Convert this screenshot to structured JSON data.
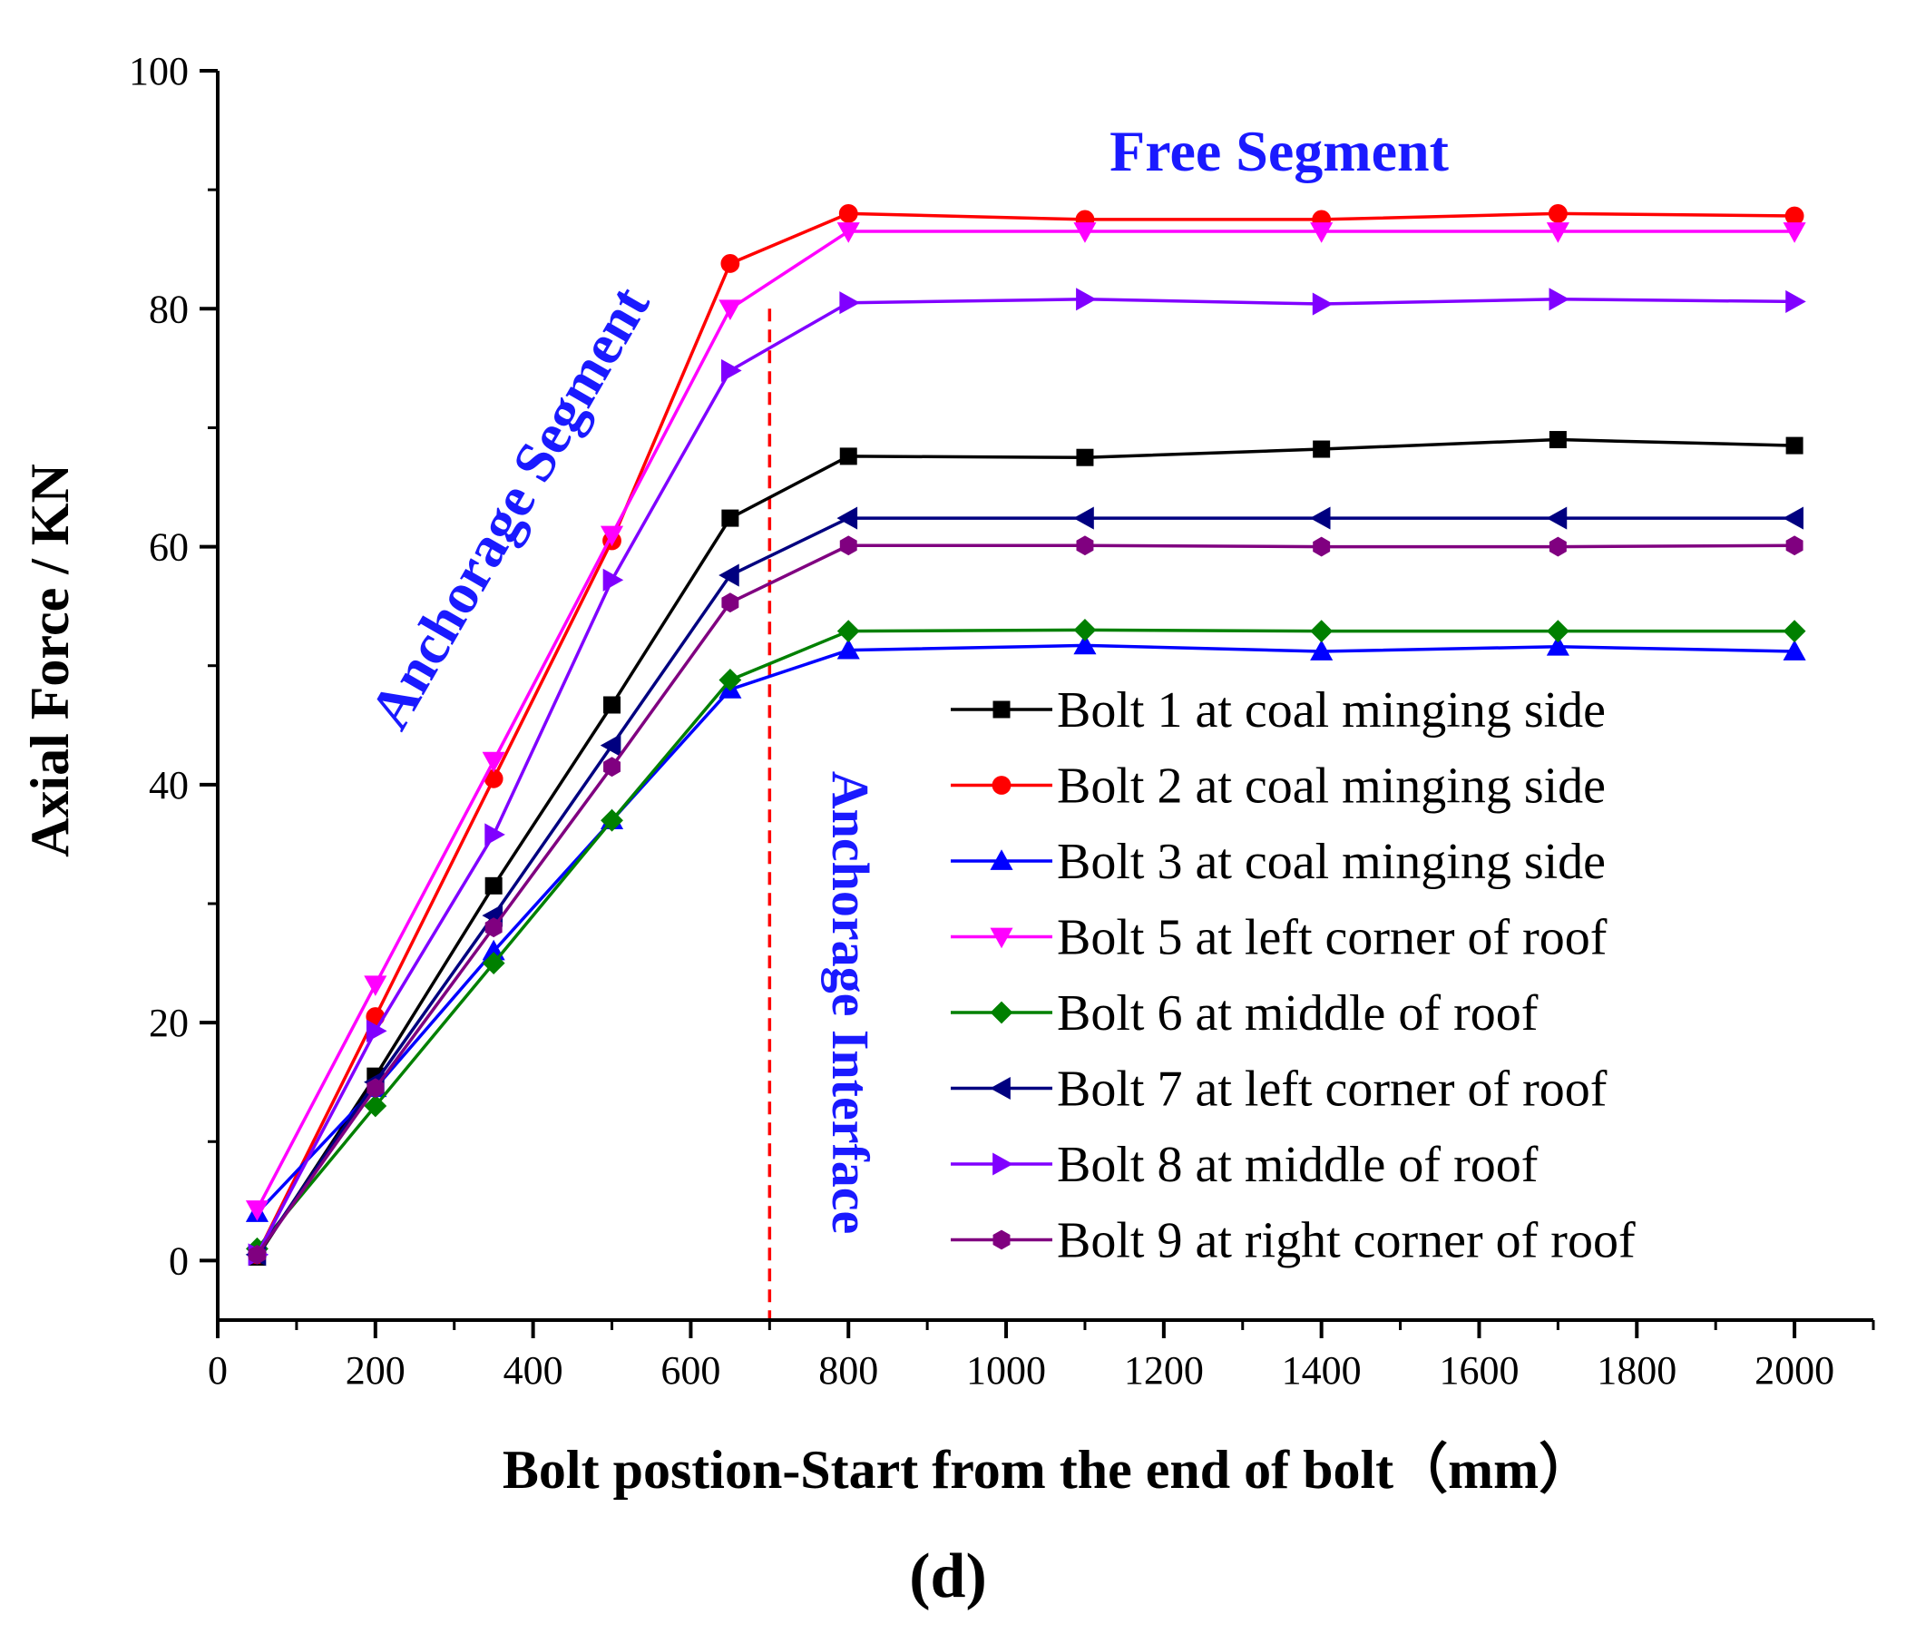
{
  "chart_data": {
    "type": "line",
    "xlabel": "Bolt postion-Start from the end of bolt（mm）",
    "ylabel": "Axial Force / KN",
    "caption": "(d)",
    "xlim": [
      0,
      2100
    ],
    "ylim": [
      -5,
      100
    ],
    "xticks": [
      0,
      200,
      400,
      600,
      800,
      1000,
      1200,
      1400,
      1600,
      1800,
      2000
    ],
    "yticks": [
      0,
      20,
      40,
      60,
      80,
      100
    ],
    "x": [
      50,
      200,
      350,
      500,
      650,
      800,
      1100,
      1400,
      1700,
      2000
    ],
    "series": [
      {
        "name": "Bolt 1 at coal minging side",
        "color": "#000000",
        "marker": "square",
        "values": [
          0.3,
          15.5,
          31.5,
          46.7,
          62.4,
          67.6,
          67.5,
          68.2,
          69.0,
          68.5
        ]
      },
      {
        "name": "Bolt 2 at coal minging side",
        "color": "#ff0000",
        "marker": "circle",
        "values": [
          0.5,
          20.5,
          40.5,
          60.5,
          83.8,
          88.0,
          87.5,
          87.5,
          88.0,
          87.8
        ]
      },
      {
        "name": "Bolt 3 at coal minging side",
        "color": "#0000ff",
        "marker": "triangle-up",
        "values": [
          4.0,
          14.5,
          26.0,
          37.0,
          48.0,
          51.3,
          51.7,
          51.2,
          51.6,
          51.2
        ]
      },
      {
        "name": "Bolt 5 at left corner of roof",
        "color": "#ff00ff",
        "marker": "triangle-down",
        "values": [
          4.3,
          23.2,
          42.0,
          61.0,
          80.0,
          86.5,
          86.5,
          86.5,
          86.5,
          86.5
        ]
      },
      {
        "name": "Bolt 6 at middle of roof",
        "color": "#008000",
        "marker": "diamond",
        "values": [
          1.0,
          13.0,
          25.0,
          37.0,
          48.8,
          52.9,
          53.0,
          52.9,
          52.9,
          52.9
        ]
      },
      {
        "name": "Bolt 7 at left corner of roof",
        "color": "#000080",
        "marker": "triangle-left",
        "values": [
          0.5,
          15.0,
          29.0,
          43.3,
          57.6,
          62.4,
          62.4,
          62.4,
          62.4,
          62.4
        ]
      },
      {
        "name": "Bolt 8 at middle of roof",
        "color": "#8000ff",
        "marker": "triangle-right",
        "values": [
          0.5,
          19.3,
          35.8,
          57.2,
          74.8,
          80.5,
          80.8,
          80.4,
          80.8,
          80.6
        ]
      },
      {
        "name": "Bolt 9 at right corner of roof",
        "color": "#800080",
        "marker": "hexagon",
        "values": [
          0.5,
          14.5,
          28.0,
          41.5,
          55.3,
          60.1,
          60.1,
          60.0,
          60.0,
          60.1
        ]
      }
    ],
    "reference_line": {
      "x": 700,
      "color": "#ff0000",
      "style": "dashed"
    },
    "annotations": {
      "free_segment": "Free Segment",
      "anchorage_segment": "Anchorage Segment",
      "anchorage_interface": "Anchorage Interface"
    },
    "legend_position": "lower-right",
    "annotation_color": "#1a1aff"
  }
}
